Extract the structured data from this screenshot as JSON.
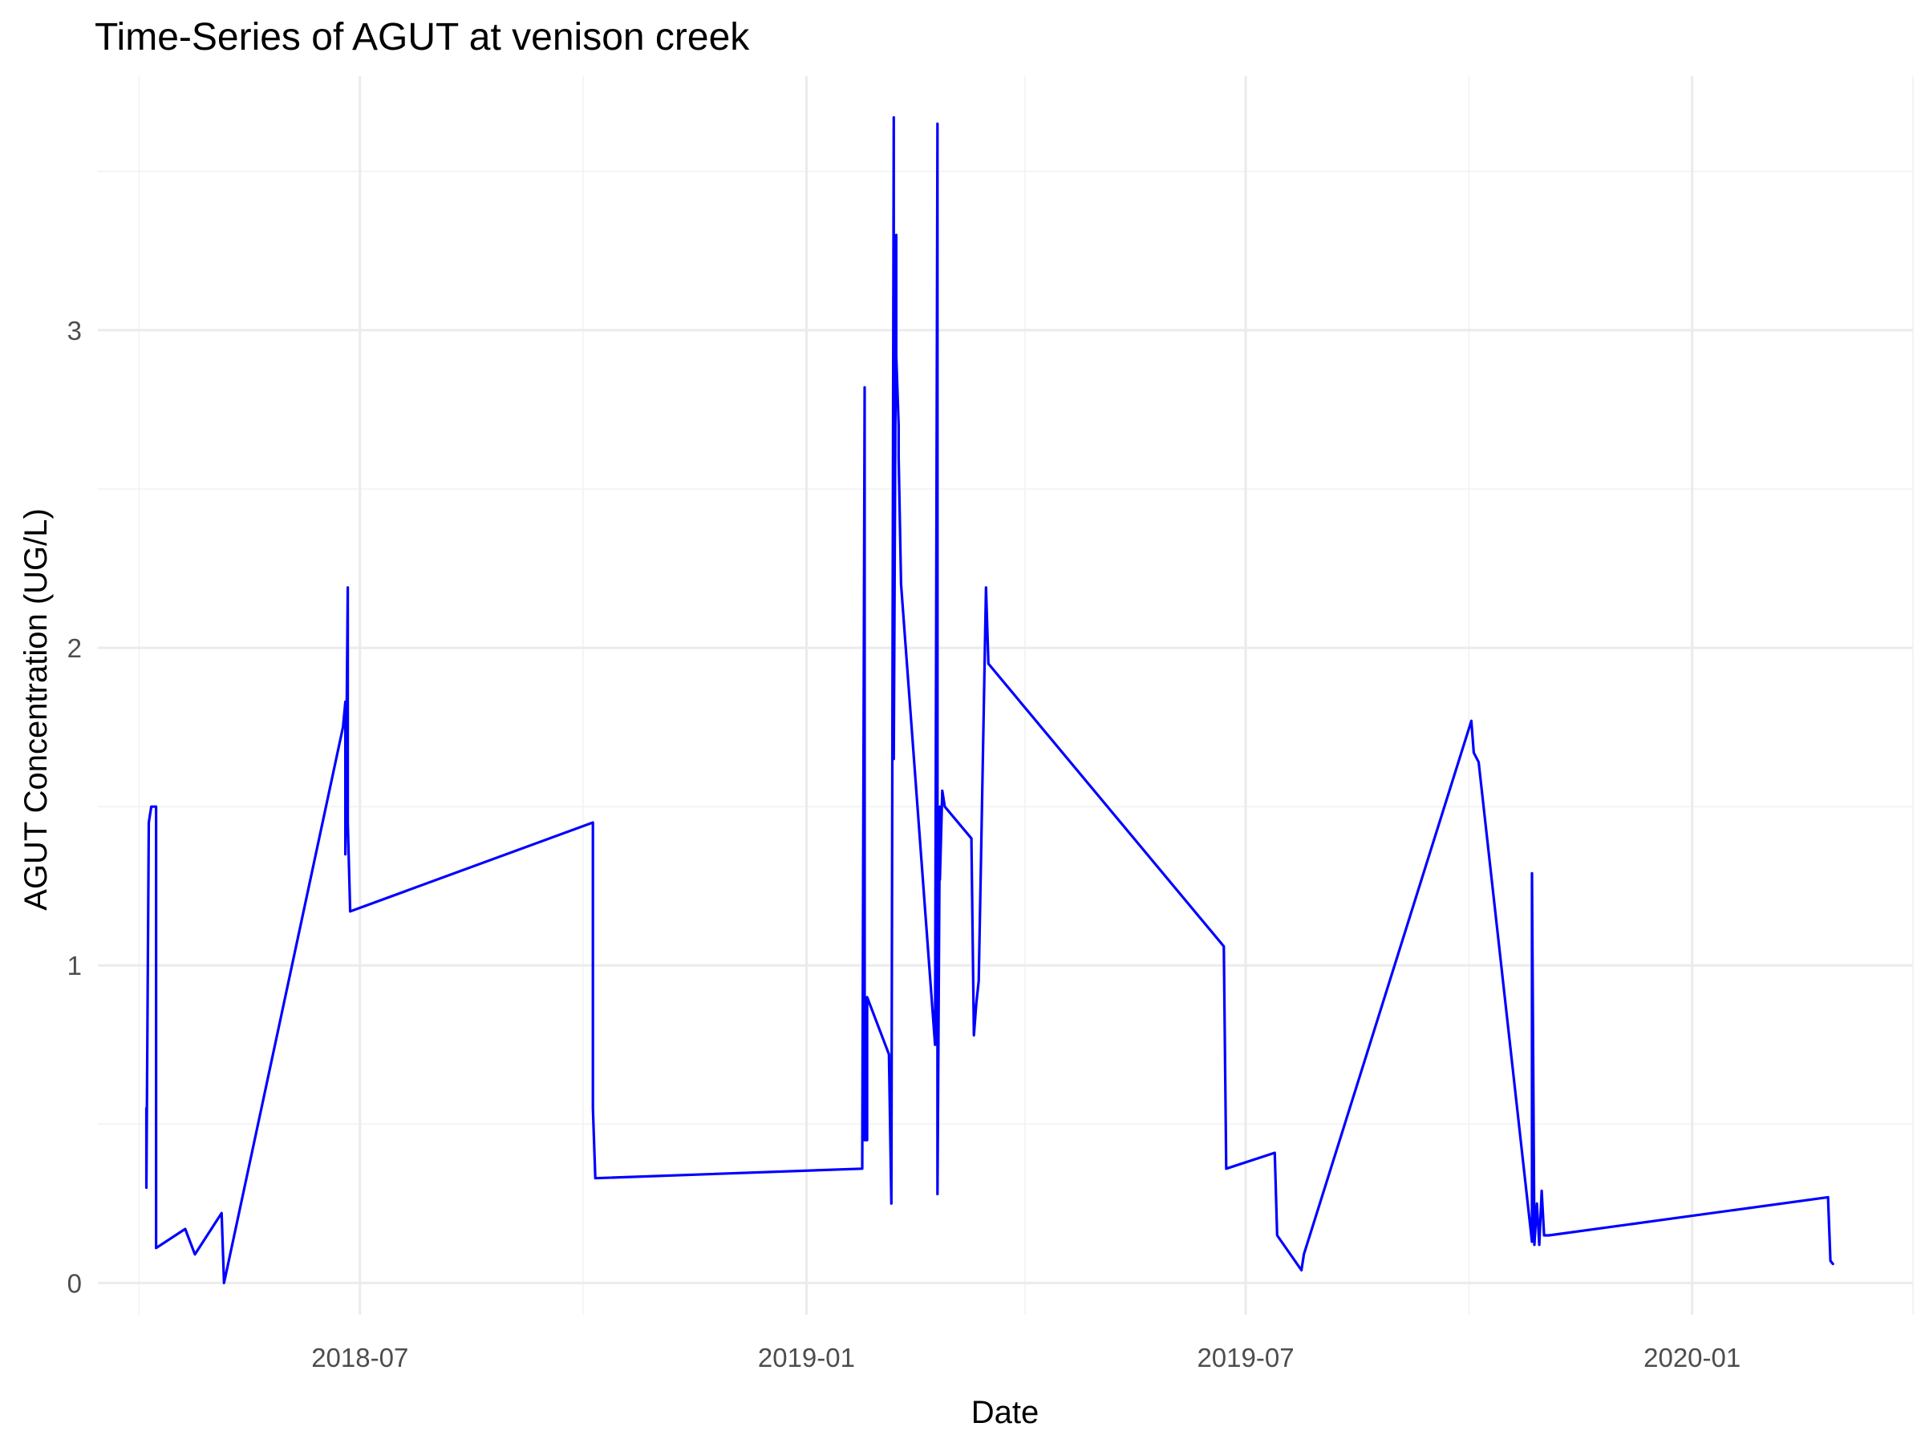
{
  "chart_data": {
    "type": "line",
    "title": "Time-Series of AGUT at venison creek",
    "xlabel": "Date",
    "ylabel": "AGUT Concentration (UG/L)",
    "x_axis_type": "date",
    "xlim": [
      "2018-03-15",
      "2020-04-01"
    ],
    "ylim": [
      -0.1,
      3.8
    ],
    "x_major_ticks": [
      {
        "date": "2018-07-01",
        "label": "2018-07"
      },
      {
        "date": "2019-01-01",
        "label": "2019-01"
      },
      {
        "date": "2019-07-01",
        "label": "2019-07"
      },
      {
        "date": "2020-01-01",
        "label": "2020-01"
      }
    ],
    "x_minor_ticks": [
      "2018-04-01",
      "2018-10-01",
      "2019-04-01",
      "2019-10-01",
      "2020-04-01"
    ],
    "y_major_ticks": [
      0,
      1,
      2,
      3
    ],
    "y_minor_ticks": [
      0.5,
      1.5,
      2.5,
      3.5
    ],
    "grid": true,
    "legend": "none",
    "colors": {
      "line": "#0000ff"
    },
    "series": [
      {
        "x": [
          "2018-04-04",
          "2018-04-04",
          "2018-04-05",
          "2018-04-05",
          "2018-04-06",
          "2018-04-08",
          "2018-04-08",
          "2018-04-20",
          "2018-04-24",
          "2018-05-05",
          "2018-05-06",
          "2018-06-24",
          "2018-06-25",
          "2018-06-25",
          "2018-06-26",
          "2018-06-26",
          "2018-06-27",
          "2018-10-05",
          "2018-10-05",
          "2018-10-06",
          "2019-01-24",
          "2019-01-25",
          "2019-01-25",
          "2019-01-26",
          "2019-01-26",
          "2019-02-04",
          "2019-02-05",
          "2019-02-05",
          "2019-02-06",
          "2019-02-06",
          "2019-02-07",
          "2019-02-07",
          "2019-02-08",
          "2019-02-08",
          "2019-02-09",
          "2019-02-23",
          "2019-02-24",
          "2019-02-24",
          "2019-02-25",
          "2019-02-25",
          "2019-02-26",
          "2019-02-27",
          "2019-03-10",
          "2019-03-11",
          "2019-03-12",
          "2019-03-13",
          "2019-03-14",
          "2019-03-16",
          "2019-03-17",
          "2019-06-22",
          "2019-06-23",
          "2019-07-13",
          "2019-07-14",
          "2019-07-24",
          "2019-07-25",
          "2019-10-02",
          "2019-10-03",
          "2019-10-05",
          "2019-10-27",
          "2019-10-27",
          "2019-10-28",
          "2019-10-29",
          "2019-10-30",
          "2019-10-31",
          "2019-11-01",
          "2019-11-01",
          "2019-11-02",
          "2019-11-03",
          "2020-02-26",
          "2020-02-27",
          "2020-02-28"
        ],
        "y": [
          0.55,
          0.3,
          1.45,
          1.45,
          1.5,
          1.5,
          0.11,
          0.17,
          0.09,
          0.22,
          0.0,
          1.75,
          1.83,
          1.35,
          2.19,
          1.45,
          1.17,
          1.45,
          0.55,
          0.33,
          0.36,
          2.82,
          0.45,
          0.45,
          0.9,
          0.72,
          0.25,
          0.25,
          3.67,
          1.65,
          3.3,
          2.92,
          2.7,
          2.6,
          2.2,
          0.75,
          3.65,
          0.28,
          1.5,
          1.27,
          1.55,
          1.5,
          1.4,
          0.78,
          0.88,
          0.95,
          1.35,
          2.19,
          1.95,
          1.06,
          0.36,
          0.41,
          0.15,
          0.04,
          0.09,
          1.77,
          1.67,
          1.64,
          0.13,
          1.29,
          0.12,
          0.25,
          0.12,
          0.29,
          0.15,
          0.15,
          0.15,
          0.15,
          0.27,
          0.07,
          0.06
        ]
      }
    ]
  }
}
